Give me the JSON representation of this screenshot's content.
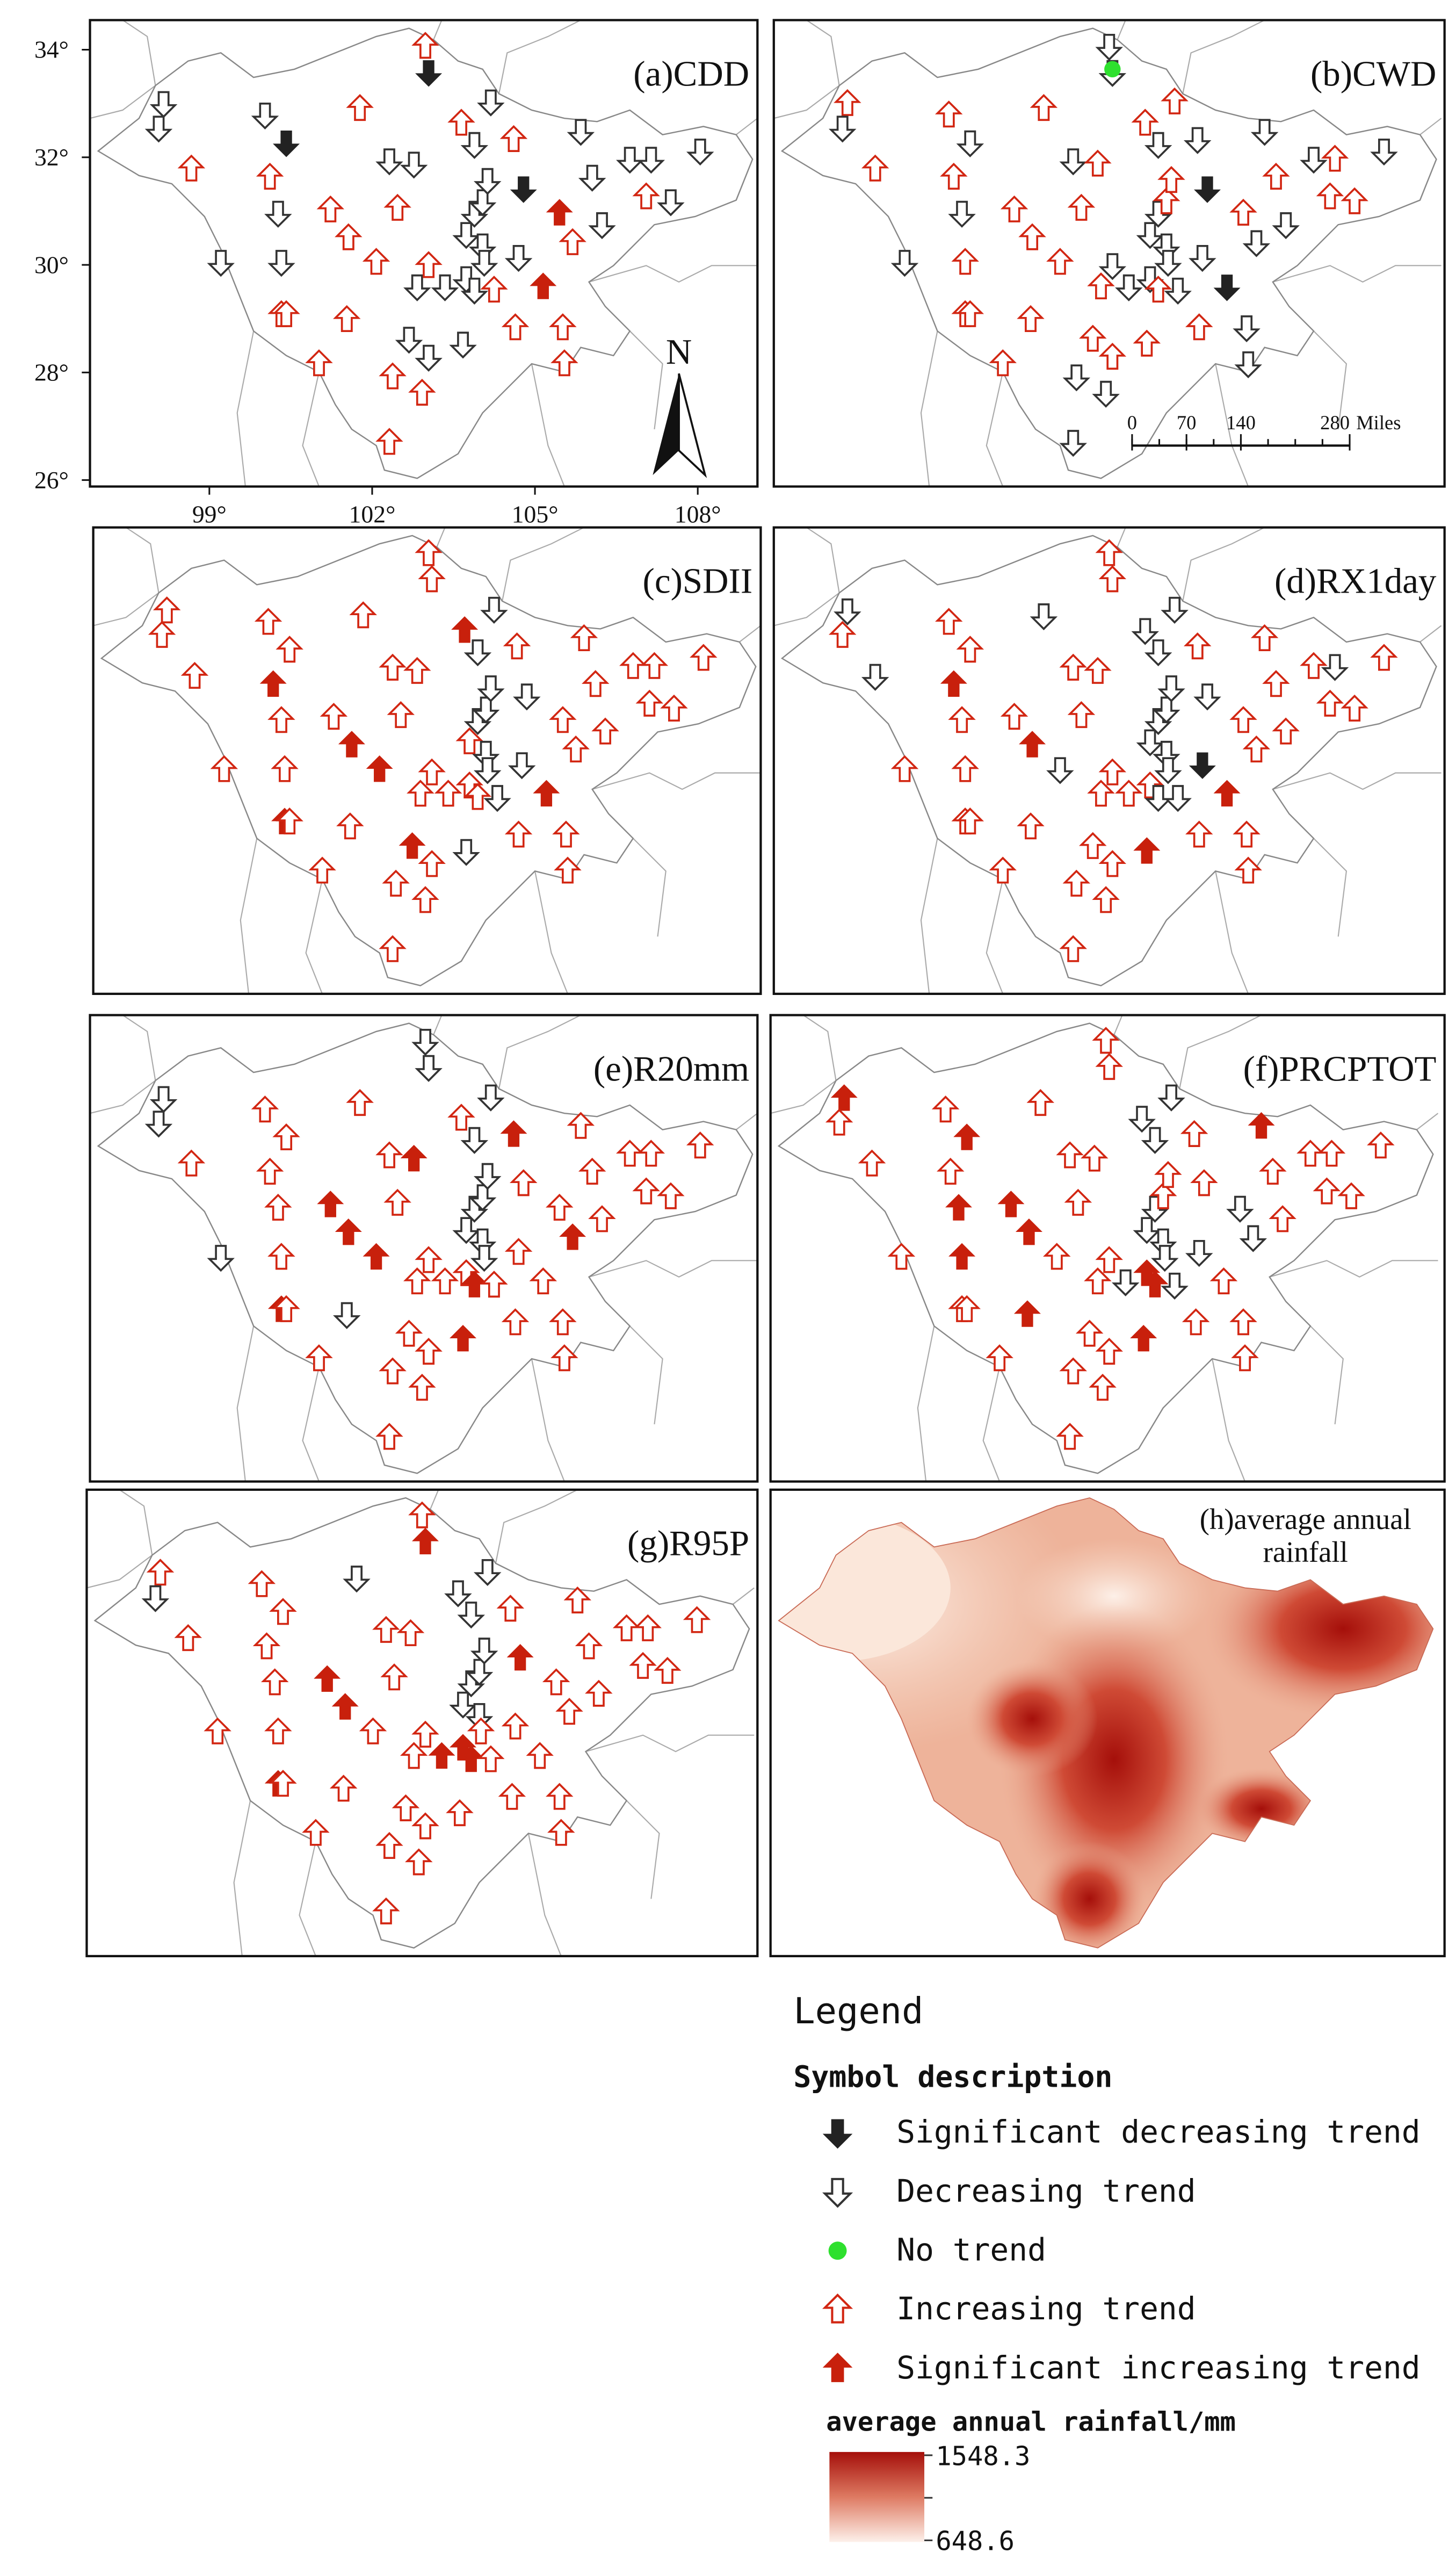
{
  "panels": [
    {
      "label": "(a)CDD"
    },
    {
      "label": "(b)CWD"
    },
    {
      "label": "(c)SDII"
    },
    {
      "label": "(d)RX1day"
    },
    {
      "label": "(e)R20mm"
    },
    {
      "label": "(f)PRCPTOT"
    },
    {
      "label": "(g)R95P"
    },
    {
      "label_lines": [
        "(h)average annual",
        "rainfall"
      ]
    }
  ],
  "map_axes": {
    "xlim": [
      96.8,
      109.1
    ],
    "ylim": [
      25.88,
      34.55
    ],
    "yticks": [
      {
        "value": 34,
        "label": "34°"
      },
      {
        "value": 32,
        "label": "32°"
      },
      {
        "value": 30,
        "label": "30°"
      },
      {
        "value": 28,
        "label": "28°"
      },
      {
        "value": 26,
        "label": "26°"
      }
    ],
    "xticks": [
      {
        "value": 99,
        "label": "99°"
      },
      {
        "value": 102,
        "label": "102°"
      },
      {
        "value": 105,
        "label": "105°"
      },
      {
        "value": 108,
        "label": "108°"
      }
    ]
  },
  "north_arrow": "N",
  "scale_bar": {
    "ticks": [
      0,
      70,
      140,
      280
    ],
    "unit": "Miles"
  },
  "legend": {
    "title": "Legend",
    "subtitle": "Symbol description",
    "items": [
      "Significant decreasing trend",
      "Decreasing trend",
      "No trend",
      "Increasing trend",
      "Significant increasing trend"
    ],
    "colorbar": {
      "title": "average annual rainfall/mm",
      "max": 1548.3,
      "min": 648.6
    }
  }
}
